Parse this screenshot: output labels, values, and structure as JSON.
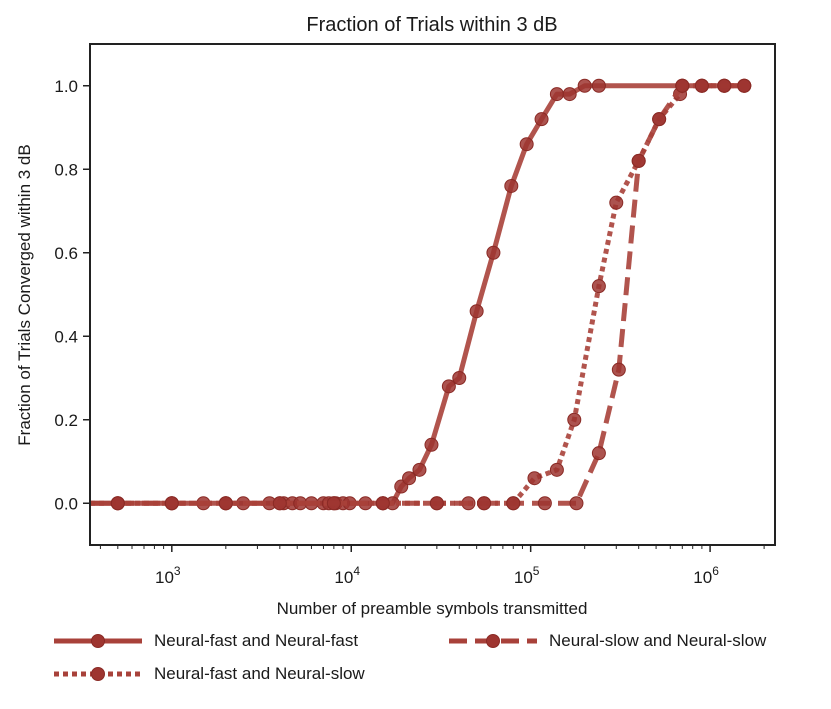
{
  "chart_data": {
    "type": "line",
    "title": "Fraction of Trials within 3 dB",
    "xlabel": "Number of preamble symbols transmitted",
    "ylabel": "Fraction of Trials Converged within 3 dB",
    "xscale": "log",
    "xlim": [
      350,
      2300000
    ],
    "ylim": [
      -0.1,
      1.1
    ],
    "yticks": [
      0.0,
      0.2,
      0.4,
      0.6,
      0.8,
      1.0
    ],
    "ytick_labels": [
      "0.0",
      "0.2",
      "0.4",
      "0.6",
      "0.8",
      "1.0"
    ],
    "xticks": [
      1000,
      10000,
      100000,
      1000000
    ],
    "xtick_labels": [
      {
        "base": "10",
        "exp": "3"
      },
      {
        "base": "10",
        "exp": "4"
      },
      {
        "base": "10",
        "exp": "5"
      },
      {
        "base": "10",
        "exp": "6"
      }
    ],
    "grid": false,
    "legend_position": "below",
    "series": [
      {
        "name": "Neural-fast and Neural-fast",
        "style": "solid",
        "color": "#a8413a",
        "points": [
          [
            350,
            0
          ],
          [
            500,
            0
          ],
          [
            1000,
            0
          ],
          [
            1500,
            0
          ],
          [
            2000,
            0
          ],
          [
            2500,
            0
          ],
          [
            3500,
            0
          ],
          [
            4200,
            0
          ],
          [
            4700,
            0
          ],
          [
            5200,
            0
          ],
          [
            6000,
            0
          ],
          [
            7000,
            0
          ],
          [
            7500,
            0
          ],
          [
            8200,
            0
          ],
          [
            9000,
            0
          ],
          [
            9800,
            0
          ],
          [
            12000,
            0
          ],
          [
            15000,
            0
          ],
          [
            17000,
            0
          ],
          [
            19000,
            0.04
          ],
          [
            21000,
            0.06
          ],
          [
            24000,
            0.08
          ],
          [
            28000,
            0.14
          ],
          [
            35000,
            0.28
          ],
          [
            40000,
            0.3
          ],
          [
            50000,
            0.46
          ],
          [
            62000,
            0.6
          ],
          [
            78000,
            0.76
          ],
          [
            95000,
            0.86
          ],
          [
            115000,
            0.92
          ],
          [
            140000,
            0.98
          ],
          [
            165000,
            0.98
          ],
          [
            200000,
            1.0
          ],
          [
            240000,
            1.0
          ],
          [
            700000,
            1.0
          ],
          [
            900000,
            1.0
          ],
          [
            1200000,
            1.0
          ],
          [
            1550000,
            1.0
          ]
        ]
      },
      {
        "name": "Neural-fast and Neural-slow",
        "style": "dotted",
        "color": "#a8413a",
        "points": [
          [
            350,
            0
          ],
          [
            500,
            0
          ],
          [
            1000,
            0
          ],
          [
            2000,
            0
          ],
          [
            4000,
            0
          ],
          [
            8000,
            0
          ],
          [
            15000,
            0
          ],
          [
            30000,
            0
          ],
          [
            45000,
            0
          ],
          [
            55000,
            0
          ],
          [
            80000,
            0
          ],
          [
            105000,
            0.06
          ],
          [
            140000,
            0.08
          ],
          [
            175000,
            0.2
          ],
          [
            240000,
            0.52
          ],
          [
            300000,
            0.72
          ],
          [
            400000,
            0.82
          ],
          [
            520000,
            0.92
          ],
          [
            680000,
            0.98
          ],
          [
            700000,
            1.0
          ],
          [
            900000,
            1.0
          ],
          [
            1200000,
            1.0
          ],
          [
            1550000,
            1.0
          ]
        ]
      },
      {
        "name": "Neural-slow and Neural-slow",
        "style": "dashed",
        "color": "#a8413a",
        "points": [
          [
            350,
            0
          ],
          [
            500,
            0
          ],
          [
            1000,
            0
          ],
          [
            2000,
            0
          ],
          [
            4000,
            0
          ],
          [
            8000,
            0
          ],
          [
            15000,
            0
          ],
          [
            30000,
            0
          ],
          [
            55000,
            0
          ],
          [
            80000,
            0
          ],
          [
            120000,
            0
          ],
          [
            180000,
            0
          ],
          [
            240000,
            0.12
          ],
          [
            310000,
            0.32
          ],
          [
            400000,
            0.82
          ],
          [
            520000,
            0.92
          ],
          [
            700000,
            1.0
          ],
          [
            900000,
            1.0
          ],
          [
            1200000,
            1.0
          ],
          [
            1550000,
            1.0
          ]
        ]
      }
    ]
  }
}
